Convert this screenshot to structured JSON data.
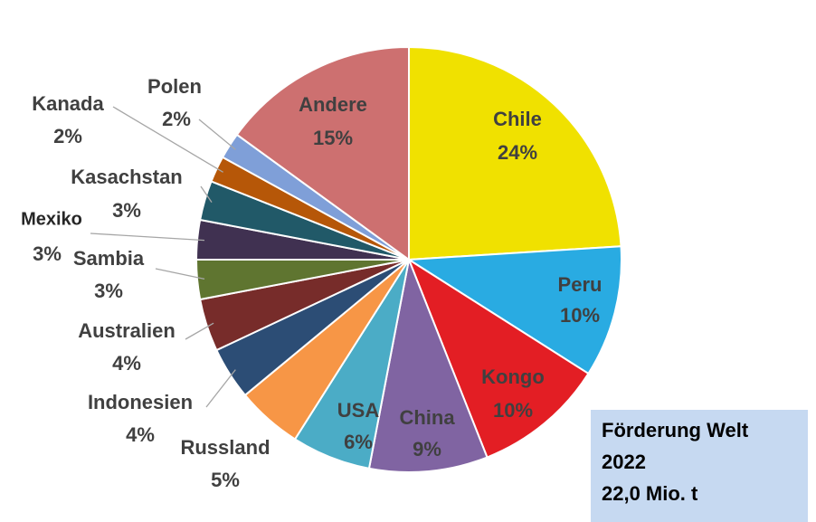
{
  "chart_data": {
    "type": "pie",
    "categories": [
      "Chile",
      "Peru",
      "Kongo",
      "China",
      "USA",
      "Russland",
      "Indonesien",
      "Australien",
      "Sambia",
      "Mexiko",
      "Kasachstan",
      "Kanada",
      "Polen",
      "Andere"
    ],
    "values": [
      24,
      10,
      10,
      9,
      6,
      5,
      4,
      4,
      3,
      3,
      3,
      2,
      2,
      15
    ],
    "value_labels": [
      "24%",
      "10%",
      "10%",
      "9%",
      "6%",
      "5%",
      "4%",
      "4%",
      "3%",
      "3%",
      "3%",
      "2%",
      "2%",
      "15%"
    ],
    "colors": [
      "#f0e100",
      "#29abe2",
      "#e31e24",
      "#8064a2",
      "#4bacc6",
      "#f79646",
      "#2c4d75",
      "#772c2a",
      "#5f7530",
      "#403151",
      "#215968",
      "#b65708",
      "#7f9fd8",
      "#cd7070"
    ],
    "annotation": [
      "Förderung Welt",
      "2022",
      "22,0 Mio. t"
    ]
  }
}
